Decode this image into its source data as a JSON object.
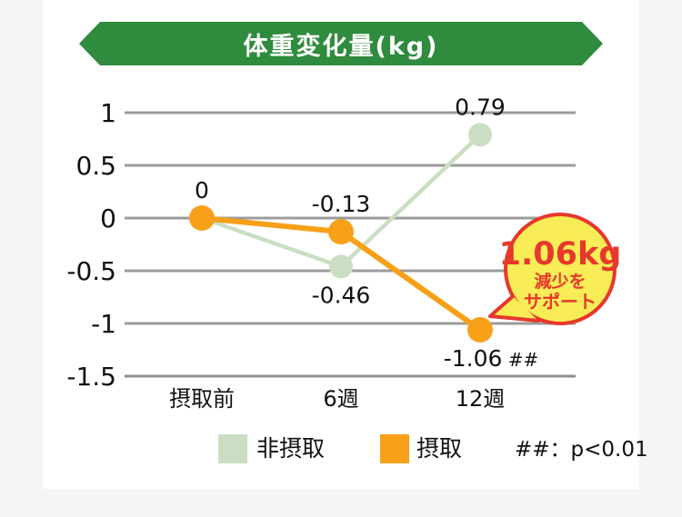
{
  "page": {
    "bg": "#f5f5f6",
    "panel_bg": "#ffffff"
  },
  "banner": {
    "title": "体重変化量(kg)",
    "color": "#2f8b3d",
    "text_color": "#ffffff"
  },
  "chart_data": {
    "type": "line",
    "title": "体重変化量(kg)",
    "categories": [
      "摂取前",
      "6週",
      "12週"
    ],
    "series": [
      {
        "name": "非摂取",
        "color": "#cadec4",
        "values": [
          0,
          -0.46,
          0.79
        ]
      },
      {
        "name": "摂取",
        "color": "#f7a018",
        "values": [
          0,
          -0.13,
          -1.06
        ]
      }
    ],
    "ylim": [
      -1.5,
      1
    ],
    "yticks": [
      1,
      0.5,
      0,
      -0.5,
      -1,
      -1.5
    ],
    "ytick_labels": [
      "1",
      "0.5",
      "0",
      "-0.5",
      "-1",
      "-1.5"
    ],
    "grid": true,
    "grid_color": "#9c9c9c",
    "axis_color": "#8f8f8f",
    "value_labels": [
      {
        "series": 1,
        "point": 0,
        "text": "0",
        "placement": "above"
      },
      {
        "series": 1,
        "point": 1,
        "text": "-0.13",
        "placement": "above"
      },
      {
        "series": 0,
        "point": 1,
        "text": "-0.46",
        "placement": "below"
      },
      {
        "series": 0,
        "point": 2,
        "text": "0.79",
        "placement": "above"
      },
      {
        "series": 1,
        "point": 2,
        "text": "-1.06",
        "suffix": "##",
        "placement": "below"
      }
    ],
    "legend_position": "bottom"
  },
  "annotation": {
    "line1": "1.06kg",
    "line2": "減少を",
    "line3": "サポート",
    "fill": "#f8ed56",
    "stroke": "#e6382c",
    "text_color": "#e6382c"
  },
  "legend": {
    "note": "##：p<0.01"
  }
}
